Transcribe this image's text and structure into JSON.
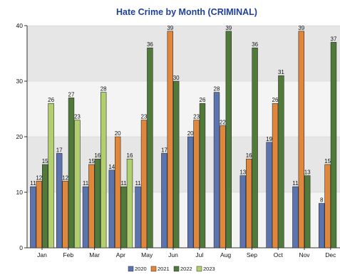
{
  "chart_data": {
    "type": "bar",
    "title": "Hate Crime by Month (CRIMINAL)",
    "xlabel": "",
    "ylabel": "",
    "ylim": [
      0,
      40
    ],
    "yticks": [
      0,
      10,
      20,
      30,
      40
    ],
    "grid": "horizontal bands",
    "legend_position": "bottom",
    "categories": [
      "Jan",
      "Feb",
      "Mar",
      "Apr",
      "May",
      "Jun",
      "Jul",
      "Aug",
      "Sep",
      "Oct",
      "Nov",
      "Dec"
    ],
    "series": [
      {
        "name": "2020",
        "color": "#5b74b0",
        "values": [
          11,
          17,
          11,
          14,
          11,
          17,
          20,
          28,
          13,
          19,
          11,
          8
        ]
      },
      {
        "name": "2021",
        "color": "#e0873c",
        "values": [
          12,
          12,
          15,
          20,
          23,
          39,
          23,
          22,
          16,
          26,
          39,
          15
        ]
      },
      {
        "name": "2022",
        "color": "#4f7a3a",
        "values": [
          15,
          27,
          16,
          11,
          36,
          30,
          26,
          39,
          36,
          31,
          13,
          37
        ]
      },
      {
        "name": "2023",
        "color": "#b2cf6e",
        "values": [
          26,
          23,
          28,
          16,
          null,
          null,
          null,
          null,
          null,
          null,
          null,
          null
        ]
      }
    ]
  }
}
